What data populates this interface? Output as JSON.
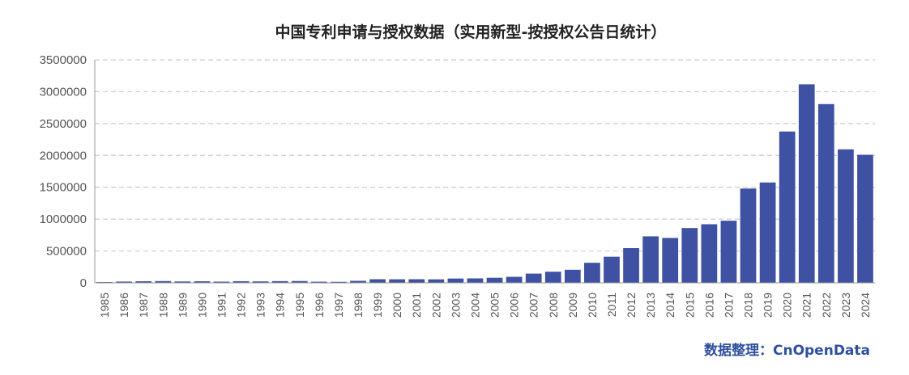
{
  "chart_data": {
    "type": "bar",
    "title": "中国专利申请与授权数据（实用新型-按授权公告日统计）",
    "xlabel": "",
    "ylabel": "",
    "ylim": [
      0,
      3500000
    ],
    "yticks": [
      0,
      500000,
      1000000,
      1500000,
      2000000,
      2500000,
      3000000,
      3500000
    ],
    "ytick_labels": [
      "0",
      "500000",
      "1000000",
      "1500000",
      "2000000",
      "2500000",
      "3000000",
      "3500000"
    ],
    "grid": true,
    "legend": "none",
    "categories": [
      "1985",
      "1986",
      "1987",
      "1988",
      "1989",
      "1990",
      "1991",
      "1992",
      "1993",
      "1994",
      "1995",
      "1996",
      "1997",
      "1998",
      "1999",
      "2000",
      "2001",
      "2002",
      "2003",
      "2004",
      "2005",
      "2006",
      "2007",
      "2008",
      "2009",
      "2010",
      "2011",
      "2012",
      "2013",
      "2014",
      "2015",
      "2016",
      "2017",
      "2018",
      "2019",
      "2020",
      "2021",
      "2022",
      "2023",
      "2024"
    ],
    "values": [
      12000,
      20000,
      25000,
      28000,
      22000,
      25000,
      19000,
      26000,
      23000,
      27000,
      29000,
      18000,
      16000,
      32000,
      57000,
      56000,
      57000,
      55000,
      68000,
      70000,
      80000,
      95000,
      145000,
      175000,
      205000,
      315000,
      410000,
      545000,
      730000,
      705000,
      860000,
      920000,
      975000,
      1480000,
      1575000,
      2375000,
      3115000,
      2805000,
      2095000,
      2010000
    ]
  },
  "source_note": "数据整理：CnOpenData",
  "colors": {
    "bar": "#3F51A3",
    "grid": "#cccccc",
    "axis": "#999999",
    "source_text": "#2F4F9F"
  }
}
